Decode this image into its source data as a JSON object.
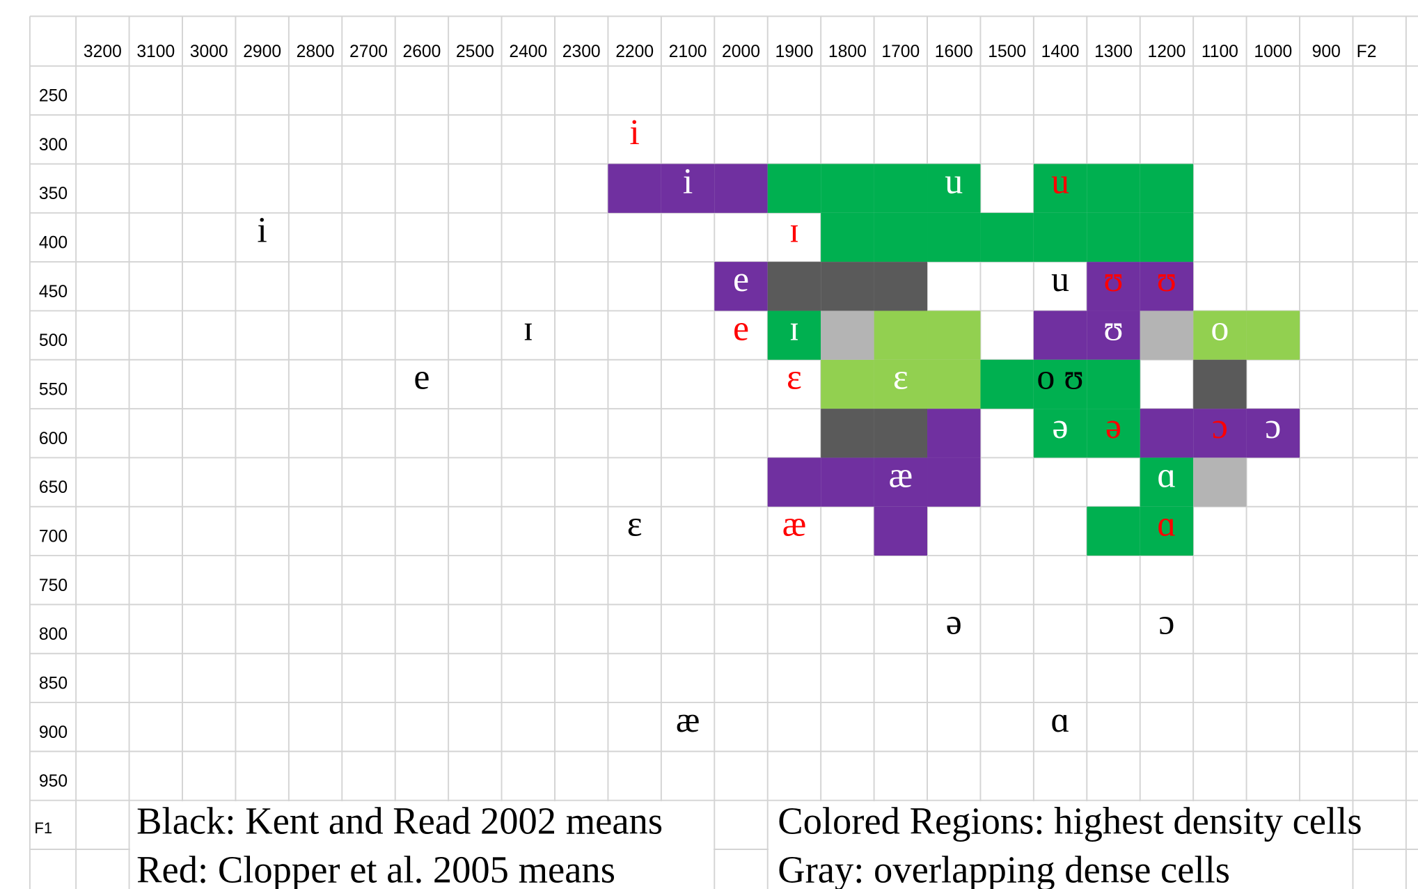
{
  "axes": {
    "f2_label": "F2",
    "f2_ticks": [
      3200,
      3100,
      3000,
      2900,
      2800,
      2700,
      2600,
      2500,
      2400,
      2300,
      2200,
      2100,
      2000,
      1900,
      1800,
      1700,
      1600,
      1500,
      1400,
      1300,
      1200,
      1100,
      1000,
      900
    ],
    "f1_label": "F1",
    "f1_ticks": [
      250,
      300,
      350,
      400,
      450,
      500,
      550,
      600,
      650,
      700,
      750,
      800,
      850,
      900,
      950
    ]
  },
  "regions": [
    {
      "color": "#7030a0",
      "cells": [
        {
          "f2": 2200,
          "f1": 350
        },
        {
          "f2": 2100,
          "f1": 350
        },
        {
          "f2": 2000,
          "f1": 350
        },
        {
          "f2": 2000,
          "f1": 450
        },
        {
          "f2": 1300,
          "f1": 450
        },
        {
          "f2": 1200,
          "f1": 450
        },
        {
          "f2": 1400,
          "f1": 500
        },
        {
          "f2": 1300,
          "f1": 500
        },
        {
          "f2": 1600,
          "f1": 600
        },
        {
          "f2": 1200,
          "f1": 600
        },
        {
          "f2": 1100,
          "f1": 600
        },
        {
          "f2": 1000,
          "f1": 600
        },
        {
          "f2": 1900,
          "f1": 650
        },
        {
          "f2": 1800,
          "f1": 650
        },
        {
          "f2": 1700,
          "f1": 650
        },
        {
          "f2": 1600,
          "f1": 650
        },
        {
          "f2": 1700,
          "f1": 700
        }
      ]
    },
    {
      "color": "#00b050",
      "cells": [
        {
          "f2": 1900,
          "f1": 350
        },
        {
          "f2": 1800,
          "f1": 350
        },
        {
          "f2": 1700,
          "f1": 350
        },
        {
          "f2": 1600,
          "f1": 350
        },
        {
          "f2": 1400,
          "f1": 350
        },
        {
          "f2": 1300,
          "f1": 350
        },
        {
          "f2": 1200,
          "f1": 350
        },
        {
          "f2": 1800,
          "f1": 400
        },
        {
          "f2": 1700,
          "f1": 400
        },
        {
          "f2": 1600,
          "f1": 400
        },
        {
          "f2": 1500,
          "f1": 400
        },
        {
          "f2": 1400,
          "f1": 400
        },
        {
          "f2": 1300,
          "f1": 400
        },
        {
          "f2": 1200,
          "f1": 400
        },
        {
          "f2": 1900,
          "f1": 500
        },
        {
          "f2": 1500,
          "f1": 550
        },
        {
          "f2": 1400,
          "f1": 550
        },
        {
          "f2": 1300,
          "f1": 550
        },
        {
          "f2": 1400,
          "f1": 600
        },
        {
          "f2": 1300,
          "f1": 600
        },
        {
          "f2": 1200,
          "f1": 650
        },
        {
          "f2": 1300,
          "f1": 700
        },
        {
          "f2": 1200,
          "f1": 700
        }
      ]
    },
    {
      "color": "#92d050",
      "cells": [
        {
          "f2": 1700,
          "f1": 500
        },
        {
          "f2": 1600,
          "f1": 500
        },
        {
          "f2": 1100,
          "f1": 500
        },
        {
          "f2": 1000,
          "f1": 500
        },
        {
          "f2": 1800,
          "f1": 550
        },
        {
          "f2": 1700,
          "f1": 550
        },
        {
          "f2": 1600,
          "f1": 550
        }
      ]
    },
    {
      "color": "#5a5a5a",
      "cells": [
        {
          "f2": 1900,
          "f1": 450
        },
        {
          "f2": 1800,
          "f1": 450
        },
        {
          "f2": 1700,
          "f1": 450
        },
        {
          "f2": 1100,
          "f1": 550
        },
        {
          "f2": 1800,
          "f1": 600
        },
        {
          "f2": 1700,
          "f1": 600
        }
      ]
    },
    {
      "color": "#b4b4b4",
      "cells": [
        {
          "f2": 1800,
          "f1": 500
        },
        {
          "f2": 1200,
          "f1": 500
        },
        {
          "f2": 1100,
          "f1": 650
        }
      ]
    }
  ],
  "symbols": [
    {
      "text": "i",
      "color": "#ff0000",
      "f2": 2200,
      "f1": 300
    },
    {
      "text": "i",
      "color": "#ffffff",
      "f2": 2100,
      "f1": 350
    },
    {
      "text": "u",
      "color": "#ffffff",
      "f2": 1600,
      "f1": 350
    },
    {
      "text": "u",
      "color": "#ff0000",
      "f2": 1400,
      "f1": 350
    },
    {
      "text": "i",
      "color": "#000000",
      "f2": 2900,
      "f1": 400
    },
    {
      "text": "ɪ",
      "color": "#ff0000",
      "f2": 1900,
      "f1": 400
    },
    {
      "text": "e",
      "color": "#ffffff",
      "f2": 2000,
      "f1": 450
    },
    {
      "text": "u",
      "color": "#000000",
      "f2": 1400,
      "f1": 450
    },
    {
      "text": "ʊ",
      "color": "#ff0000",
      "f2": 1300,
      "f1": 450
    },
    {
      "text": "ʊ",
      "color": "#ff0000",
      "f2": 1200,
      "f1": 450
    },
    {
      "text": "ɪ",
      "color": "#000000",
      "f2": 2400,
      "f1": 500
    },
    {
      "text": "e",
      "color": "#ff0000",
      "f2": 2000,
      "f1": 500
    },
    {
      "text": "ɪ",
      "color": "#ffffff",
      "f2": 1900,
      "f1": 500
    },
    {
      "text": "ʊ",
      "color": "#ffffff",
      "f2": 1300,
      "f1": 500
    },
    {
      "text": "o",
      "color": "#ffffff",
      "f2": 1100,
      "f1": 500
    },
    {
      "text": "e",
      "color": "#000000",
      "f2": 2600,
      "f1": 550
    },
    {
      "text": "ɛ",
      "color": "#ff0000",
      "f2": 1900,
      "f1": 550
    },
    {
      "text": "ɛ",
      "color": "#ffffff",
      "f2": 1700,
      "f1": 550
    },
    {
      "text": "o ʊ",
      "color": "#000000",
      "f2": 1400,
      "f1": 550
    },
    {
      "text": "ə",
      "color": "#ffffff",
      "f2": 1400,
      "f1": 600
    },
    {
      "text": "ə",
      "color": "#ff0000",
      "f2": 1300,
      "f1": 600
    },
    {
      "text": "ɔ",
      "color": "#ff0000",
      "f2": 1100,
      "f1": 600
    },
    {
      "text": "ɔ",
      "color": "#ffffff",
      "f2": 1000,
      "f1": 600
    },
    {
      "text": "æ",
      "color": "#ffffff",
      "f2": 1700,
      "f1": 650
    },
    {
      "text": "ɑ",
      "color": "#ffffff",
      "f2": 1200,
      "f1": 650
    },
    {
      "text": "ɛ",
      "color": "#000000",
      "f2": 2200,
      "f1": 700
    },
    {
      "text": "æ",
      "color": "#ff0000",
      "f2": 1900,
      "f1": 700
    },
    {
      "text": "ɑ",
      "color": "#ff0000",
      "f2": 1200,
      "f1": 700
    },
    {
      "text": "ə",
      "color": "#000000",
      "f2": 1600,
      "f1": 800
    },
    {
      "text": "ɔ",
      "color": "#000000",
      "f2": 1200,
      "f1": 800
    },
    {
      "text": "æ",
      "color": "#000000",
      "f2": 2100,
      "f1": 900
    },
    {
      "text": "ɑ",
      "color": "#000000",
      "f2": 1400,
      "f1": 900
    }
  ],
  "legend": [
    "Black: Kent and Read 2002 means",
    "Red:  Clopper et al. 2005 means",
    "Colored Regions: highest density cells",
    "Gray: overlapping dense cells"
  ]
}
